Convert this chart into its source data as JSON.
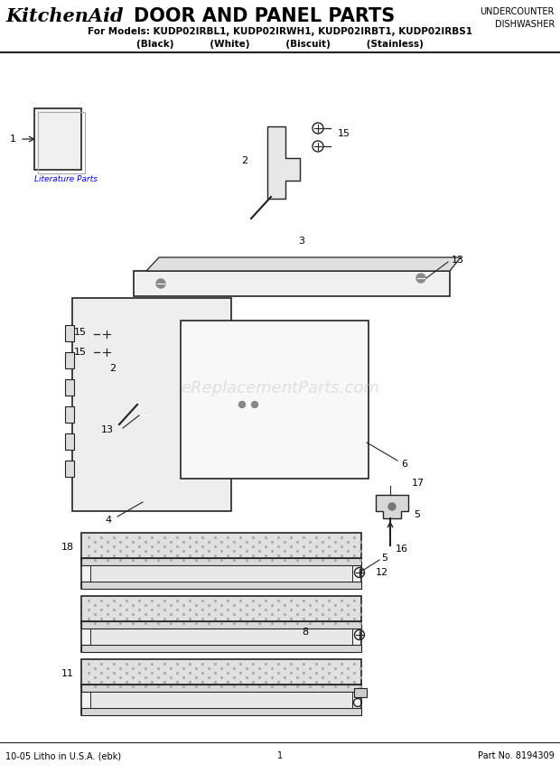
{
  "title_kitchenaid": "KitchenAid",
  "title_rest": "DOOR AND PANEL PARTS",
  "subtitle": "For Models: KUDP02IRBL1, KUDP02IRWH1, KUDP02IRBT1, KUDP02IRBS1",
  "subtitle2": "(Black)           (White)           (Biscuit)           (Stainless)",
  "undercounter": "UNDERCOUNTER\nDISHWASHER",
  "watermark": "eReplacementParts.com",
  "footer_left": "10-05 Litho in U.S.A. (ebk)",
  "footer_center": "1",
  "footer_right": "Part No. 8194309",
  "bg_color": "#ffffff",
  "line_color": "#222222"
}
